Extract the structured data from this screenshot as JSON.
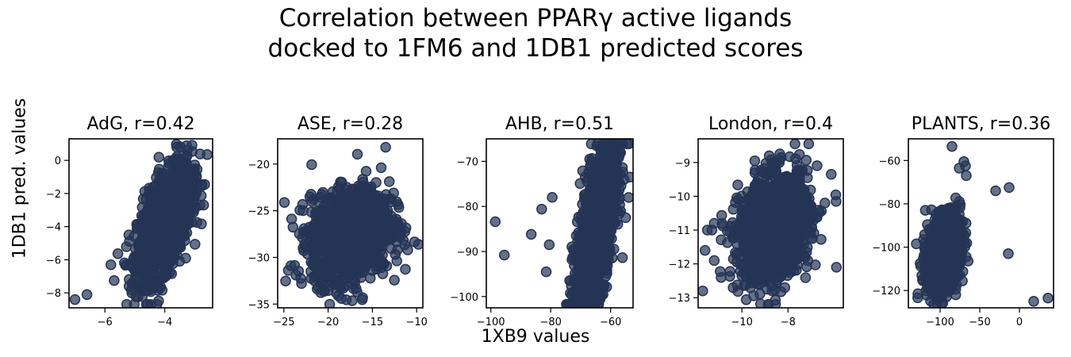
{
  "figure": {
    "title_line1": "Correlation between PPARγ active ligands",
    "title_line2": "docked to 1FM6 and 1DB1 predicted scores",
    "xlabel": "1XB9 values",
    "ylabel": "1DB1 pred. values",
    "point_color": "#253455"
  },
  "chart_data": [
    {
      "type": "scatter",
      "title": "AdG, r=0.42",
      "xlim": [
        -7.2,
        -2.4
      ],
      "ylim": [
        -8.9,
        1.3
      ],
      "xticks": [
        -6,
        -4
      ],
      "yticks": [
        0,
        -2,
        -4,
        -6,
        -8
      ],
      "xtick_labels": [
        "−6",
        "−4"
      ],
      "ytick_labels": [
        "0",
        "−2",
        "−4",
        "−6",
        "−8"
      ],
      "cluster": {
        "x_center": -4.0,
        "x_spread": 0.45,
        "y_center": -3.8,
        "y_spread": 1.5,
        "slope": 1.3
      },
      "outliers": [
        [
          -7.0,
          -8.4
        ],
        [
          -6.6,
          -8.1
        ],
        [
          -5.2,
          -4.5
        ],
        [
          -5.1,
          -8.0
        ],
        [
          -3.6,
          0.8
        ],
        [
          -3.0,
          -0.8
        ],
        [
          -3.2,
          -0.6
        ],
        [
          -2.7,
          -2.7
        ],
        [
          -5.8,
          -6.3
        ],
        [
          -3.3,
          -5.9
        ]
      ]
    },
    {
      "type": "scatter",
      "title": "ASE, r=0.28",
      "xlim": [
        -25.7,
        -9.3
      ],
      "ylim": [
        -35.4,
        -17.3
      ],
      "xticks": [
        -25,
        -20,
        -15,
        -10
      ],
      "yticks": [
        -20,
        -25,
        -30,
        -35
      ],
      "xtick_labels": [
        "−25",
        "−20",
        "−15",
        "−10"
      ],
      "ytick_labels": [
        "−20",
        "−25",
        "−30",
        "−35"
      ],
      "cluster": {
        "x_center": -17.5,
        "x_spread": 2.2,
        "y_center": -27.5,
        "y_spread": 2.6,
        "slope": 0.35
      },
      "outliers": [
        [
          -24.5,
          -31.4
        ],
        [
          -24.2,
          -30.9
        ],
        [
          -23.0,
          -32.8
        ],
        [
          -18.5,
          -34.4
        ],
        [
          -13.5,
          -18.2
        ],
        [
          -12.6,
          -23.1
        ],
        [
          -11.0,
          -29.2
        ],
        [
          -9.8,
          -28.6
        ],
        [
          -13.0,
          -27.5
        ],
        [
          -22.5,
          -27.2
        ]
      ]
    },
    {
      "type": "scatter",
      "title": "AHB, r=0.51",
      "xlim": [
        -101.5,
        -52.5
      ],
      "ylim": [
        -102.5,
        -65.0
      ],
      "xticks": [
        -100,
        -80,
        -60
      ],
      "yticks": [
        -70,
        -80,
        -90,
        -100
      ],
      "xtick_labels": [
        "−100",
        "−80",
        "−60"
      ],
      "ytick_labels": [
        "−70",
        "−80",
        "−90",
        "−100"
      ],
      "cluster": {
        "x_center": -65.0,
        "x_spread": 3.5,
        "y_center": -86.0,
        "y_spread": 8.0,
        "slope": 1.6
      },
      "outliers": [
        [
          -98.5,
          -83.4
        ],
        [
          -95.5,
          -90.8
        ],
        [
          -86.5,
          -86.2
        ],
        [
          -81.5,
          -94.5
        ],
        [
          -83.0,
          -80.6
        ],
        [
          -80.5,
          -88.5
        ],
        [
          -79.5,
          -78.0
        ],
        [
          -60.5,
          -66.5
        ],
        [
          -53.5,
          -73.5
        ],
        [
          -55.0,
          -82.5
        ]
      ]
    },
    {
      "type": "scatter",
      "title": "London, r=0.4",
      "xlim": [
        -11.9,
        -5.6
      ],
      "ylim": [
        -13.3,
        -8.3
      ],
      "xticks": [
        -10,
        -8
      ],
      "yticks": [
        -9,
        -10,
        -11,
        -12,
        -13
      ],
      "xtick_labels": [
        "−10",
        "−8"
      ],
      "ytick_labels": [
        "−9",
        "−10",
        "−11",
        "−12",
        "−13"
      ],
      "cluster": {
        "x_center": -8.6,
        "x_spread": 0.75,
        "y_center": -10.9,
        "y_spread": 0.85,
        "slope": 0.45
      },
      "outliers": [
        [
          -11.7,
          -12.8
        ],
        [
          -11.5,
          -11.0
        ],
        [
          -11.6,
          -11.6
        ],
        [
          -11.3,
          -11.0
        ],
        [
          -11.2,
          -10.8
        ],
        [
          -11.2,
          -11.9
        ],
        [
          -10.9,
          -12.4
        ],
        [
          -7.1,
          -8.45
        ],
        [
          -5.9,
          -12.1
        ],
        [
          -6.4,
          -10.2
        ],
        [
          -10.0,
          -10.4
        ]
      ]
    },
    {
      "type": "scatter",
      "title": "PLANTS, r=0.36",
      "xlim": [
        -140,
        43
      ],
      "ylim": [
        -128,
        -50
      ],
      "xticks": [
        -100,
        -50,
        0
      ],
      "yticks": [
        -60,
        -80,
        -100,
        -120
      ],
      "xtick_labels": [
        "−100",
        "−50",
        "0"
      ],
      "ytick_labels": [
        "−60",
        "−80",
        "−100",
        "−120"
      ],
      "cluster": {
        "x_center": -95.0,
        "x_spread": 10.0,
        "y_center": -103.0,
        "y_spread": 9.0,
        "slope": 0.55
      },
      "outliers": [
        [
          -85.0,
          -53.5
        ],
        [
          -70.0,
          -60.5
        ],
        [
          -68.0,
          -62.5
        ],
        [
          -67.0,
          -67.0
        ],
        [
          -30.0,
          -74.0
        ],
        [
          -13.0,
          -72.5
        ],
        [
          -14.0,
          -103.0
        ],
        [
          18.0,
          -125.0
        ],
        [
          36.0,
          -123.5
        ],
        [
          -130.0,
          -98.5
        ],
        [
          -128.0,
          -121.5
        ]
      ]
    }
  ]
}
